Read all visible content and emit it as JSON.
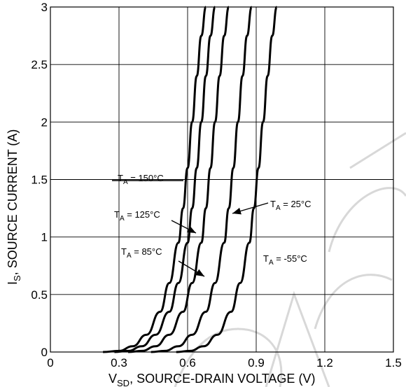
{
  "chart_data": {
    "type": "line",
    "xlabel": {
      "main": "V",
      "sub": "SD",
      "rest": ", SOURCE-DRAIN VOLTAGE (V)"
    },
    "ylabel": {
      "main": "I",
      "sub": "S",
      "rest": ", SOURCE CURRENT (A)"
    },
    "xlim": [
      0,
      1.5
    ],
    "ylim": [
      0,
      3
    ],
    "xticks": [
      0,
      0.3,
      0.6,
      0.9,
      1.2,
      1.5
    ],
    "xtick_labels": [
      "0",
      "0.3",
      "0.6",
      "0.9",
      "1.2",
      "1.5"
    ],
    "yticks": [
      0,
      0.5,
      1,
      1.5,
      2,
      2.5,
      3
    ],
    "ytick_labels": [
      "0",
      "0.5",
      "1",
      "1.5",
      "2",
      "2.5",
      "3"
    ],
    "grid": true,
    "series": [
      {
        "name": "T_A = 150°C",
        "x": [
          0.23,
          0.3,
          0.36,
          0.42,
          0.48,
          0.52,
          0.56,
          0.58,
          0.6,
          0.62,
          0.64,
          0.66,
          0.68
        ],
        "y": [
          0.0,
          0.01,
          0.05,
          0.15,
          0.35,
          0.6,
          0.95,
          1.25,
          1.6,
          2.0,
          2.4,
          2.75,
          3.0
        ]
      },
      {
        "name": "T_A = 125°C",
        "x": [
          0.28,
          0.34,
          0.4,
          0.46,
          0.52,
          0.56,
          0.6,
          0.62,
          0.64,
          0.66,
          0.68,
          0.7,
          0.72
        ],
        "y": [
          0.0,
          0.01,
          0.05,
          0.15,
          0.35,
          0.6,
          0.95,
          1.25,
          1.6,
          2.0,
          2.4,
          2.75,
          3.0
        ]
      },
      {
        "name": "T_A = 85°C",
        "x": [
          0.34,
          0.4,
          0.46,
          0.52,
          0.58,
          0.62,
          0.66,
          0.68,
          0.7,
          0.72,
          0.74,
          0.76,
          0.78
        ],
        "y": [
          0.0,
          0.01,
          0.05,
          0.15,
          0.35,
          0.6,
          0.95,
          1.25,
          1.6,
          2.0,
          2.4,
          2.75,
          3.0
        ]
      },
      {
        "name": "T_A = 25°C",
        "x": [
          0.44,
          0.5,
          0.56,
          0.62,
          0.68,
          0.72,
          0.76,
          0.78,
          0.8,
          0.82,
          0.84,
          0.86,
          0.88
        ],
        "y": [
          0.0,
          0.01,
          0.05,
          0.15,
          0.35,
          0.6,
          0.95,
          1.25,
          1.6,
          2.0,
          2.4,
          2.75,
          3.0
        ]
      },
      {
        "name": "T_A = -55°C",
        "x": [
          0.55,
          0.61,
          0.67,
          0.73,
          0.79,
          0.83,
          0.87,
          0.89,
          0.91,
          0.93,
          0.95,
          0.97,
          0.99
        ],
        "y": [
          0.0,
          0.01,
          0.05,
          0.15,
          0.35,
          0.6,
          0.95,
          1.25,
          1.6,
          2.0,
          2.4,
          2.75,
          3.0
        ]
      }
    ],
    "annotations": [
      {
        "main": "T",
        "sub": "A",
        "rest": " = 150°C"
      },
      {
        "main": "T",
        "sub": "A",
        "rest": " = 125°C"
      },
      {
        "main": "T",
        "sub": "A",
        "rest": " = 85°C"
      },
      {
        "main": "T",
        "sub": "A",
        "rest": " = 25°C"
      },
      {
        "main": "T",
        "sub": "A",
        "rest": " = -55°C"
      }
    ]
  }
}
